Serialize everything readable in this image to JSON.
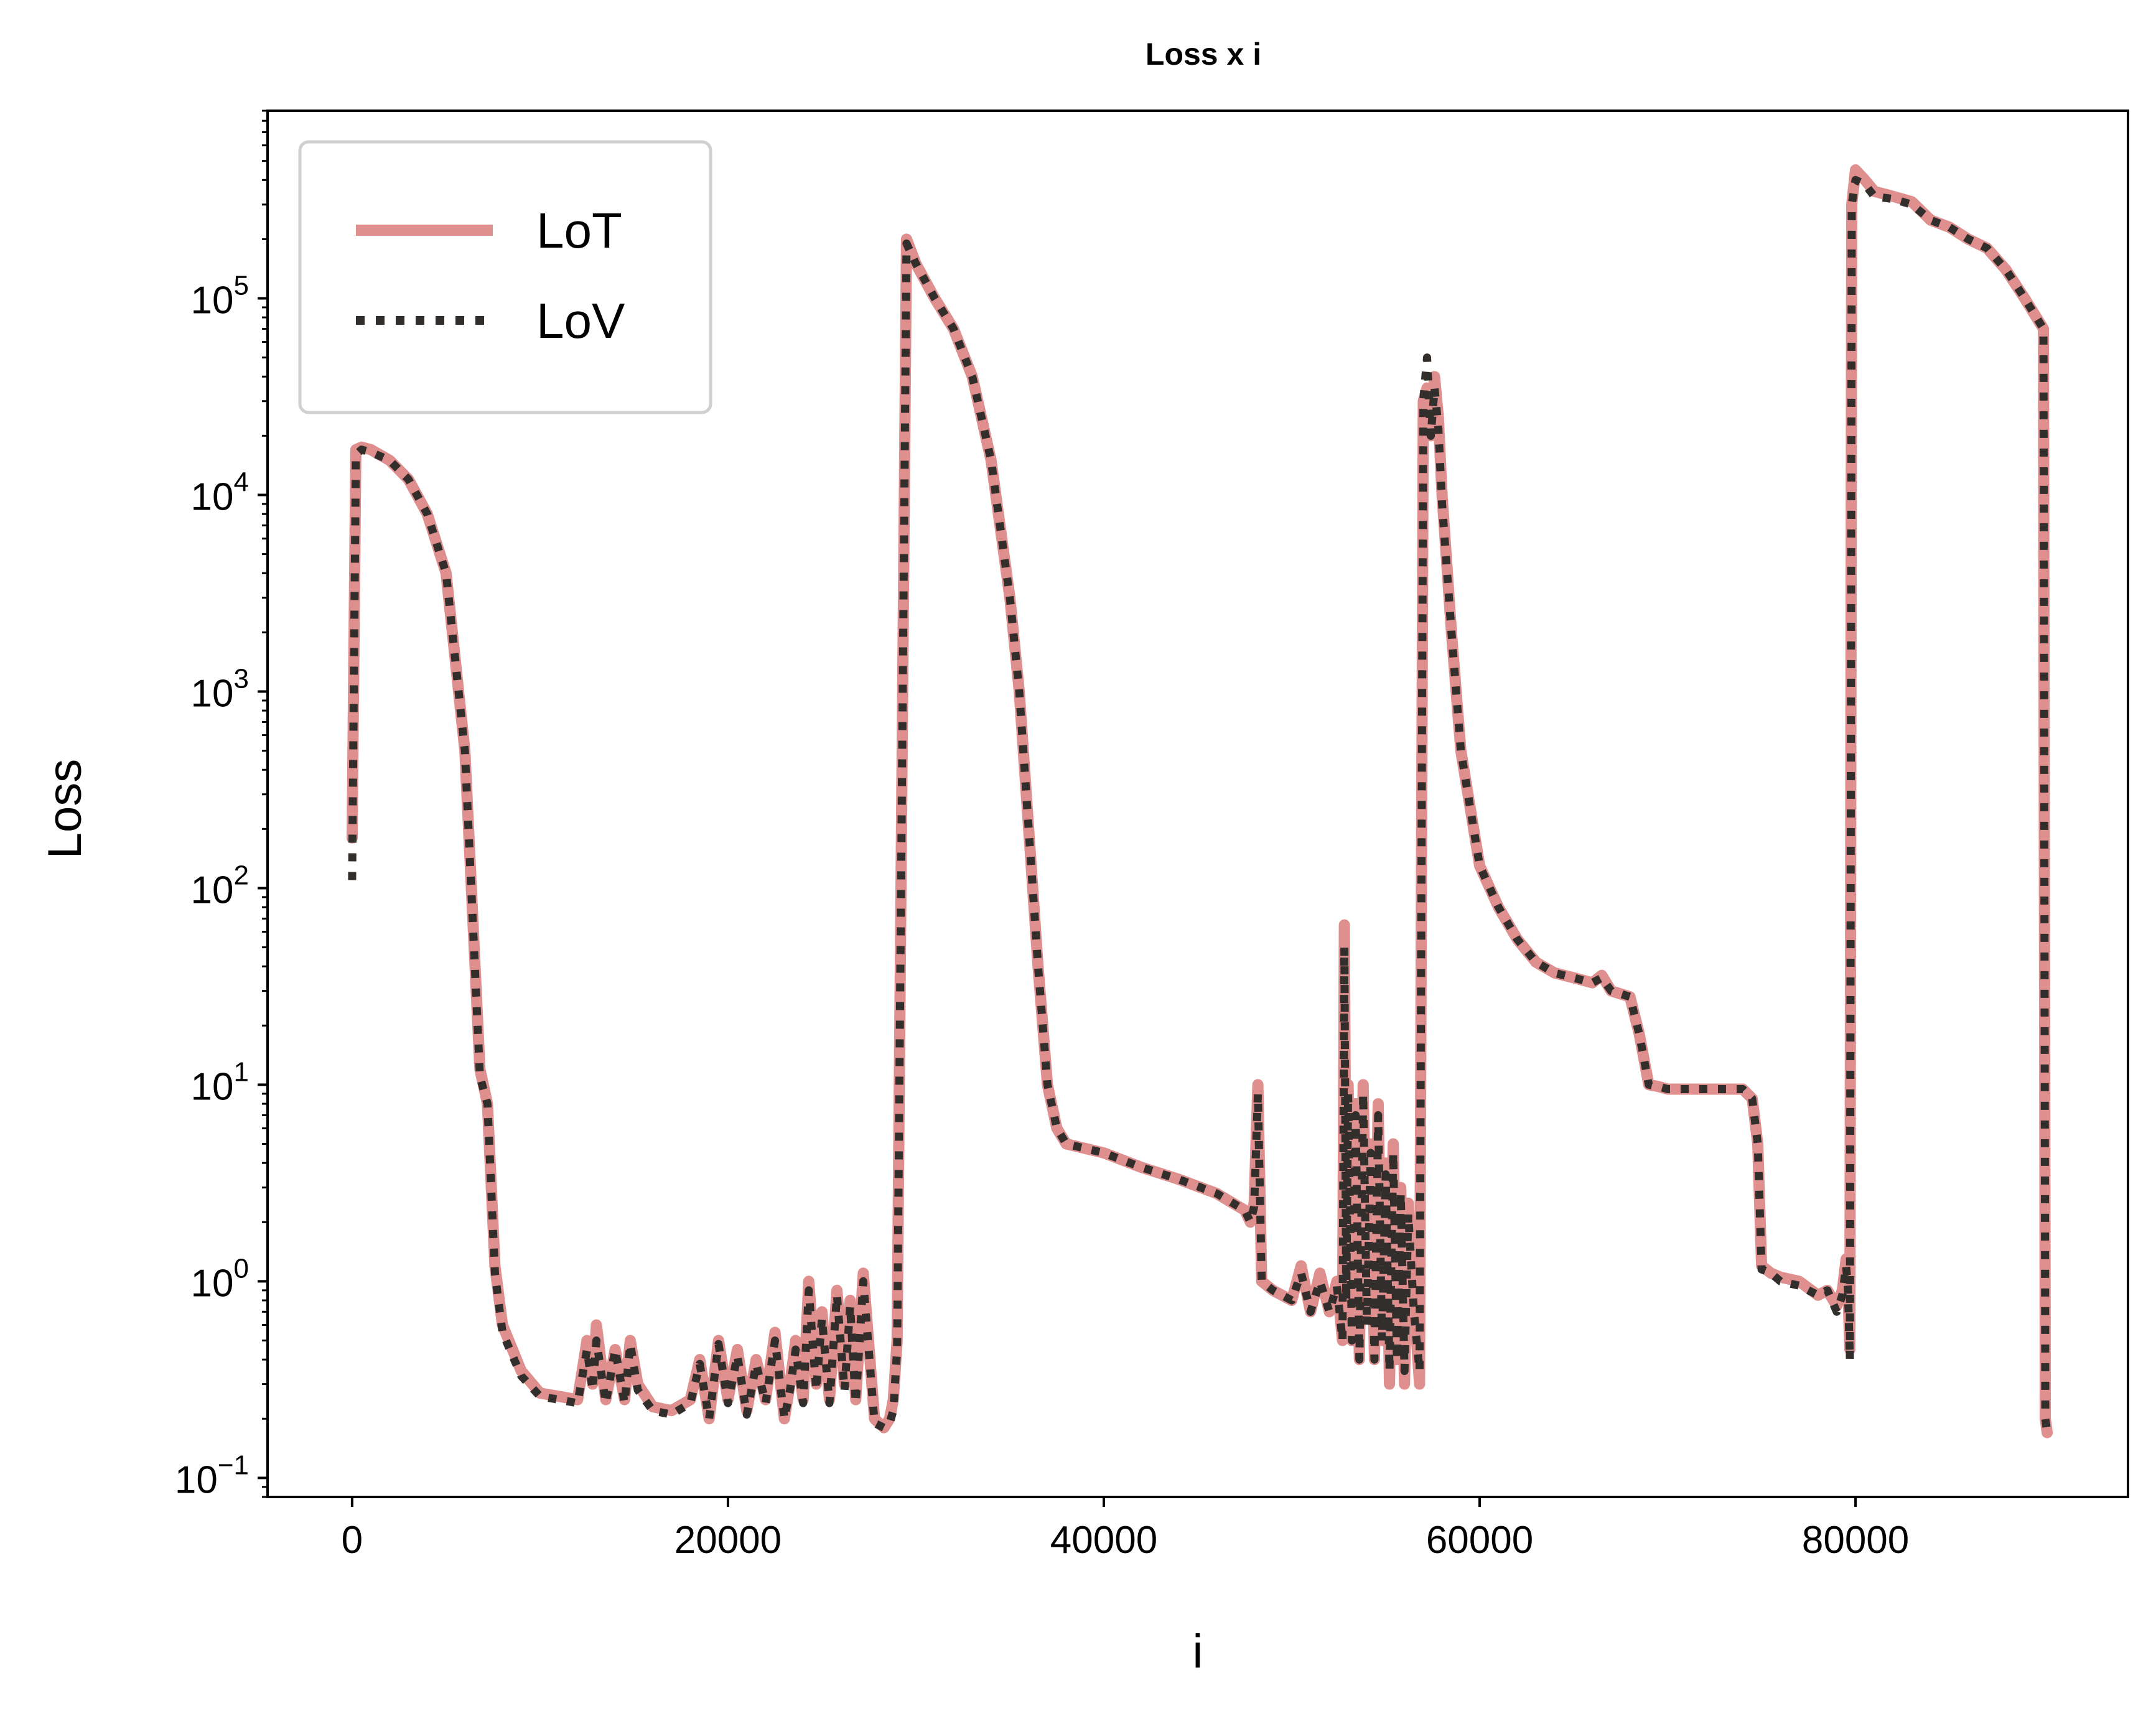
{
  "chart_data": {
    "type": "line",
    "title": "Loss x i",
    "xlabel": "i",
    "ylabel": "Loss",
    "yscale": "log",
    "xlim": [
      -4500,
      94500
    ],
    "ylim": [
      0.08,
      900000
    ],
    "xticks": [
      0,
      20000,
      40000,
      60000,
      80000
    ],
    "xtick_labels": [
      "0",
      "20000",
      "40000",
      "60000",
      "80000"
    ],
    "yticks": [
      {
        "value": 0.1,
        "base": "10",
        "exp": "−1"
      },
      {
        "value": 1,
        "base": "10",
        "exp": "0"
      },
      {
        "value": 10,
        "base": "10",
        "exp": "1"
      },
      {
        "value": 100,
        "base": "10",
        "exp": "2"
      },
      {
        "value": 1000,
        "base": "10",
        "exp": "3"
      },
      {
        "value": 10000,
        "base": "10",
        "exp": "4"
      },
      {
        "value": 100000,
        "base": "10",
        "exp": "5"
      }
    ],
    "grid": false,
    "legend_position": "upper-left",
    "series": [
      {
        "name": "LoT",
        "color": "#e08f8f",
        "style": "solid",
        "x": [
          0,
          200,
          500,
          1000,
          2000,
          3000,
          4000,
          5000,
          6000,
          6800,
          7200,
          7600,
          8000,
          9000,
          10000,
          11000,
          12000,
          12500,
          12800,
          13000,
          13500,
          14000,
          14500,
          14800,
          15200,
          16000,
          17000,
          18000,
          18500,
          19000,
          19500,
          20000,
          20500,
          21000,
          21500,
          22000,
          22500,
          23000,
          23300,
          23600,
          24000,
          24300,
          24700,
          25000,
          25400,
          25800,
          26200,
          26500,
          26800,
          27200,
          27800,
          28300,
          28600,
          28800,
          29000,
          29500,
          30000,
          31000,
          32000,
          33000,
          34000,
          35000,
          35500,
          36000,
          36500,
          37000,
          37500,
          38000,
          40000,
          42000,
          44000,
          46000,
          47500,
          47800,
          48000,
          48200,
          48400,
          49000,
          50000,
          50500,
          51000,
          51500,
          52000,
          52400,
          52700,
          52800,
          52900,
          53000,
          53200,
          53400,
          53600,
          53800,
          54000,
          54200,
          54400,
          54600,
          54800,
          55000,
          55200,
          55400,
          55600,
          55800,
          56000,
          56200,
          56500,
          56800,
          57000,
          57200,
          57400,
          57600,
          57800,
          58000,
          58500,
          59000,
          60000,
          61000,
          62000,
          63000,
          64000,
          65000,
          66000,
          66500,
          67000,
          68000,
          68500,
          69000,
          69500,
          70000,
          72000,
          74000,
          74500,
          74800,
          75000,
          75500,
          76000,
          77000,
          78000,
          78500,
          79000,
          79300,
          79500,
          79600,
          79700,
          79800,
          80000,
          80500,
          81000,
          82000,
          83000,
          84000,
          85000,
          86000,
          87000,
          88000,
          89000,
          90000,
          90100,
          90200
        ],
        "y": [
          180,
          17000,
          17500,
          17000,
          15000,
          12000,
          8000,
          4000,
          500,
          12,
          8,
          1.2,
          0.6,
          0.35,
          0.27,
          0.26,
          0.25,
          0.5,
          0.3,
          0.6,
          0.25,
          0.45,
          0.25,
          0.5,
          0.3,
          0.23,
          0.22,
          0.25,
          0.4,
          0.2,
          0.5,
          0.25,
          0.45,
          0.22,
          0.4,
          0.25,
          0.55,
          0.2,
          0.3,
          0.5,
          0.25,
          1.0,
          0.3,
          0.7,
          0.25,
          0.9,
          0.3,
          0.8,
          0.25,
          1.1,
          0.2,
          0.18,
          0.2,
          0.25,
          0.5,
          200000,
          150000,
          100000,
          70000,
          40000,
          15000,
          3000,
          1000,
          200,
          40,
          10,
          6,
          5,
          4.5,
          3.8,
          3.3,
          2.8,
          2.3,
          2.0,
          2.5,
          10,
          1.0,
          0.9,
          0.8,
          1.2,
          0.7,
          1.1,
          0.7,
          1.0,
          0.5,
          65,
          0.8,
          10,
          0.5,
          8,
          0.4,
          10,
          0.7,
          5,
          0.4,
          8,
          0.5,
          4,
          0.3,
          5,
          0.4,
          3,
          0.3,
          2.5,
          0.8,
          0.3,
          30000,
          35000,
          20000,
          40000,
          25000,
          10000,
          2000,
          500,
          130,
          80,
          55,
          42,
          37,
          35,
          33,
          36,
          30,
          28,
          18,
          10,
          9.8,
          9.5,
          9.5,
          9.5,
          8.5,
          5,
          1.2,
          1.1,
          1.05,
          1.0,
          0.85,
          0.9,
          0.75,
          0.9,
          1.3,
          0.9,
          0.45,
          300000,
          450000,
          400000,
          350000,
          330000,
          310000,
          250000,
          230000,
          200000,
          180000,
          140000,
          100000,
          70000,
          0.2,
          0.17
        ]
      },
      {
        "name": "LoV",
        "color": "#322e2c",
        "style": "dotted",
        "x": [
          0,
          200,
          500,
          1000,
          2000,
          3000,
          4000,
          5000,
          6000,
          6800,
          7200,
          7600,
          8000,
          9000,
          10000,
          11000,
          12000,
          12500,
          12800,
          13000,
          13500,
          14000,
          14500,
          14800,
          15200,
          16000,
          17000,
          18000,
          18500,
          19000,
          19500,
          20000,
          20500,
          21000,
          21500,
          22000,
          22500,
          23000,
          23300,
          23600,
          24000,
          24300,
          24700,
          25000,
          25400,
          25800,
          26200,
          26500,
          26800,
          27200,
          27800,
          28300,
          28600,
          28800,
          29000,
          29500,
          30000,
          31000,
          32000,
          33000,
          34000,
          35000,
          35500,
          36000,
          36500,
          37000,
          37500,
          38000,
          40000,
          42000,
          44000,
          46000,
          47500,
          47800,
          48000,
          48200,
          48400,
          49000,
          50000,
          50500,
          51000,
          51500,
          52000,
          52400,
          52700,
          52800,
          52900,
          53000,
          53200,
          53400,
          53600,
          53800,
          54000,
          54200,
          54400,
          54600,
          54800,
          55000,
          55200,
          55400,
          55600,
          55800,
          56000,
          56200,
          56500,
          56800,
          57000,
          57200,
          57400,
          57600,
          57800,
          58000,
          58500,
          59000,
          60000,
          61000,
          62000,
          63000,
          64000,
          65000,
          66000,
          66500,
          67000,
          68000,
          68500,
          69000,
          69500,
          70000,
          72000,
          74000,
          74500,
          74800,
          75000,
          75500,
          76000,
          77000,
          78000,
          78500,
          79000,
          79300,
          79500,
          79600,
          79700,
          79800,
          80000,
          80500,
          81000,
          82000,
          83000,
          84000,
          85000,
          86000,
          87000,
          88000,
          89000,
          90000,
          90100,
          90200
        ],
        "y": [
          110,
          16000,
          17000,
          16500,
          15000,
          12000,
          8000,
          4000,
          500,
          11,
          8,
          1.1,
          0.55,
          0.33,
          0.26,
          0.25,
          0.24,
          0.45,
          0.28,
          0.5,
          0.24,
          0.45,
          0.24,
          0.48,
          0.28,
          0.22,
          0.21,
          0.24,
          0.38,
          0.2,
          0.48,
          0.24,
          0.42,
          0.21,
          0.38,
          0.24,
          0.5,
          0.2,
          0.28,
          0.45,
          0.24,
          0.9,
          0.28,
          0.65,
          0.24,
          0.85,
          0.28,
          0.75,
          0.24,
          1.0,
          0.19,
          0.18,
          0.19,
          0.22,
          0.45,
          190000,
          150000,
          100000,
          70000,
          40000,
          15000,
          3000,
          1000,
          200,
          40,
          10,
          6,
          5,
          4.5,
          3.8,
          3.3,
          2.8,
          2.3,
          2.0,
          2.4,
          9,
          1.0,
          0.9,
          0.8,
          1.1,
          0.7,
          1.0,
          0.7,
          0.95,
          0.5,
          50,
          0.8,
          9,
          0.5,
          7,
          0.4,
          9,
          0.6,
          4.5,
          0.4,
          7,
          0.5,
          3.5,
          0.35,
          4.5,
          0.4,
          2.8,
          0.35,
          2.2,
          0.7,
          0.35,
          30000,
          50000,
          20000,
          35000,
          22000,
          9000,
          2000,
          500,
          130,
          80,
          55,
          42,
          37,
          35,
          33,
          35,
          30,
          28,
          18,
          10,
          9.8,
          9.5,
          9.5,
          9.5,
          8.5,
          5,
          1.15,
          1.1,
          1.0,
          0.95,
          0.85,
          0.9,
          0.7,
          0.85,
          1.2,
          0.9,
          0.4,
          300000,
          400000,
          380000,
          330000,
          320000,
          300000,
          250000,
          230000,
          200000,
          180000,
          140000,
          100000,
          70000,
          0.2,
          0.17
        ]
      }
    ]
  }
}
